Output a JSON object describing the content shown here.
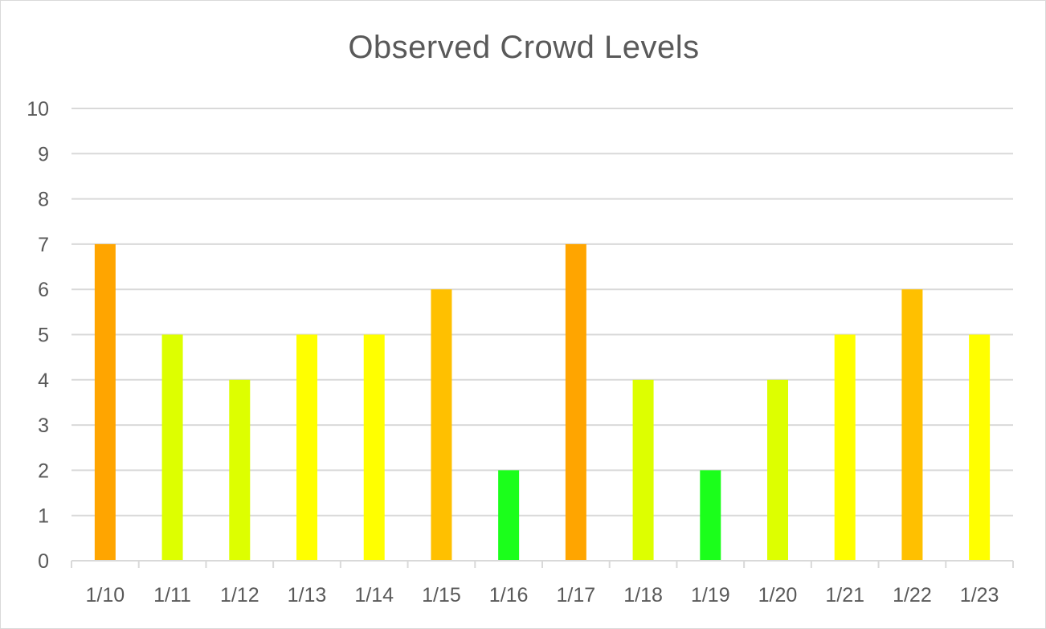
{
  "chart_data": {
    "type": "bar",
    "title": "Observed Crowd Levels",
    "xlabel": "",
    "ylabel": "",
    "categories": [
      "1/10",
      "1/11",
      "1/12",
      "1/13",
      "1/14",
      "1/15",
      "1/16",
      "1/17",
      "1/18",
      "1/19",
      "1/20",
      "1/21",
      "1/22",
      "1/23"
    ],
    "values": [
      7,
      5,
      4,
      5,
      5,
      6,
      2,
      7,
      4,
      2,
      4,
      5,
      6,
      5
    ],
    "bar_colors": [
      "#ffa500",
      "#ddff00",
      "#ddff00",
      "#ffff00",
      "#ffff00",
      "#ffc000",
      "#1bff1b",
      "#ffa500",
      "#ddff00",
      "#1bff1b",
      "#ddff00",
      "#ffff00",
      "#ffc000",
      "#ffff00"
    ],
    "ylim": [
      0,
      10
    ],
    "yticks": [
      "0",
      "1",
      "2",
      "3",
      "4",
      "5",
      "6",
      "7",
      "8",
      "9",
      "10"
    ],
    "grid": true,
    "legend": "none"
  },
  "colors": {
    "gridline": "#d9d9d9",
    "text": "#595959"
  }
}
